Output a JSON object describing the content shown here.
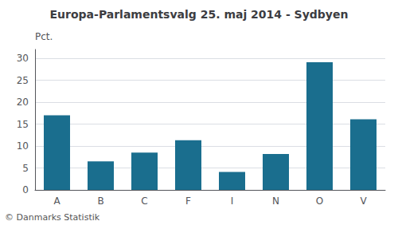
{
  "chart_data": {
    "type": "bar",
    "title": "Europa-Parlamentsvalg 25. maj 2014 - Sydbyen",
    "ylabel": "Pct.",
    "annotations": [
      "© Danmarks Statistik"
    ],
    "categories": [
      "A",
      "B",
      "C",
      "F",
      "I",
      "N",
      "O",
      "V"
    ],
    "values": [
      17.0,
      6.5,
      8.5,
      11.3,
      4.1,
      8.2,
      29.1,
      16.1
    ],
    "color": "#1a6e8e",
    "ylim": [
      0,
      32
    ],
    "yticks": [
      0,
      5,
      10,
      15,
      20,
      25,
      30
    ],
    "grid": true
  }
}
